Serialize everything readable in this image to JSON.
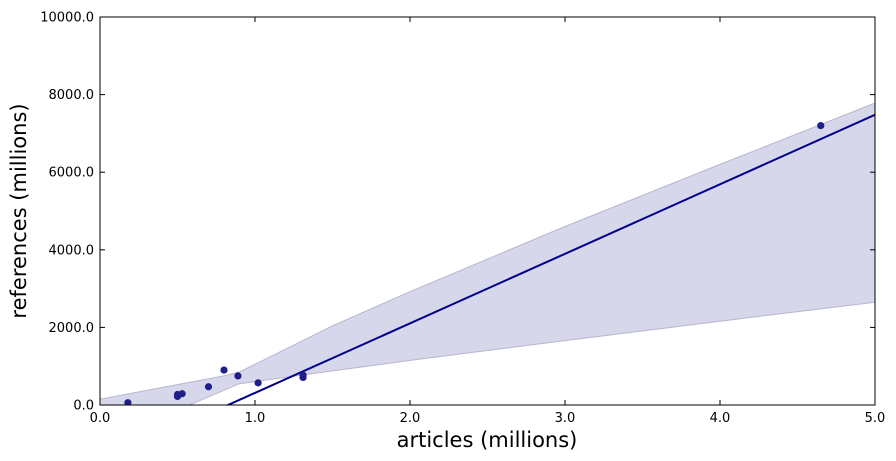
{
  "chart_data": {
    "type": "scatter",
    "title": "",
    "xlabel": "articles (millions)",
    "ylabel": "references (millions)",
    "xlim": [
      0.0,
      5.0
    ],
    "ylim": [
      0.0,
      10000.0
    ],
    "xticks": [
      0.0,
      1.0,
      2.0,
      3.0,
      4.0,
      5.0
    ],
    "xtick_labels": [
      "0.0",
      "1.0",
      "2.0",
      "3.0",
      "4.0",
      "5.0"
    ],
    "yticks": [
      0,
      2000,
      4000,
      6000,
      8000,
      10000
    ],
    "ytick_labels": [
      "0.0",
      "2000.0",
      "4000.0",
      "6000.0",
      "8000.0",
      "10000.0"
    ],
    "grid": false,
    "legend": "none",
    "points": [
      {
        "x": 0.18,
        "y": 60
      },
      {
        "x": 0.5,
        "y": 220
      },
      {
        "x": 0.5,
        "y": 270
      },
      {
        "x": 0.53,
        "y": 290
      },
      {
        "x": 0.7,
        "y": 470
      },
      {
        "x": 0.8,
        "y": 900
      },
      {
        "x": 0.89,
        "y": 750
      },
      {
        "x": 1.02,
        "y": 570
      },
      {
        "x": 1.31,
        "y": 710
      },
      {
        "x": 1.31,
        "y": 770
      },
      {
        "x": 4.65,
        "y": 7200
      }
    ],
    "fit_line": [
      {
        "x": 0.0,
        "y": -1480
      },
      {
        "x": 5.0,
        "y": 7480
      }
    ],
    "confidence_band": {
      "x": [
        0.0,
        0.4,
        0.8,
        0.9,
        1.5,
        2.0,
        3.0,
        4.0,
        5.0
      ],
      "upper": [
        150,
        450,
        750,
        850,
        2040,
        2920,
        4600,
        6200,
        7780
      ],
      "lower": [
        -20,
        -300,
        380,
        550,
        880,
        1150,
        1660,
        2160,
        2650
      ]
    },
    "colors": {
      "points": "#1f1f8a",
      "line": "#00008b",
      "band_fill": "#d7d7ec",
      "band_edge": "#b8b6cc"
    }
  }
}
